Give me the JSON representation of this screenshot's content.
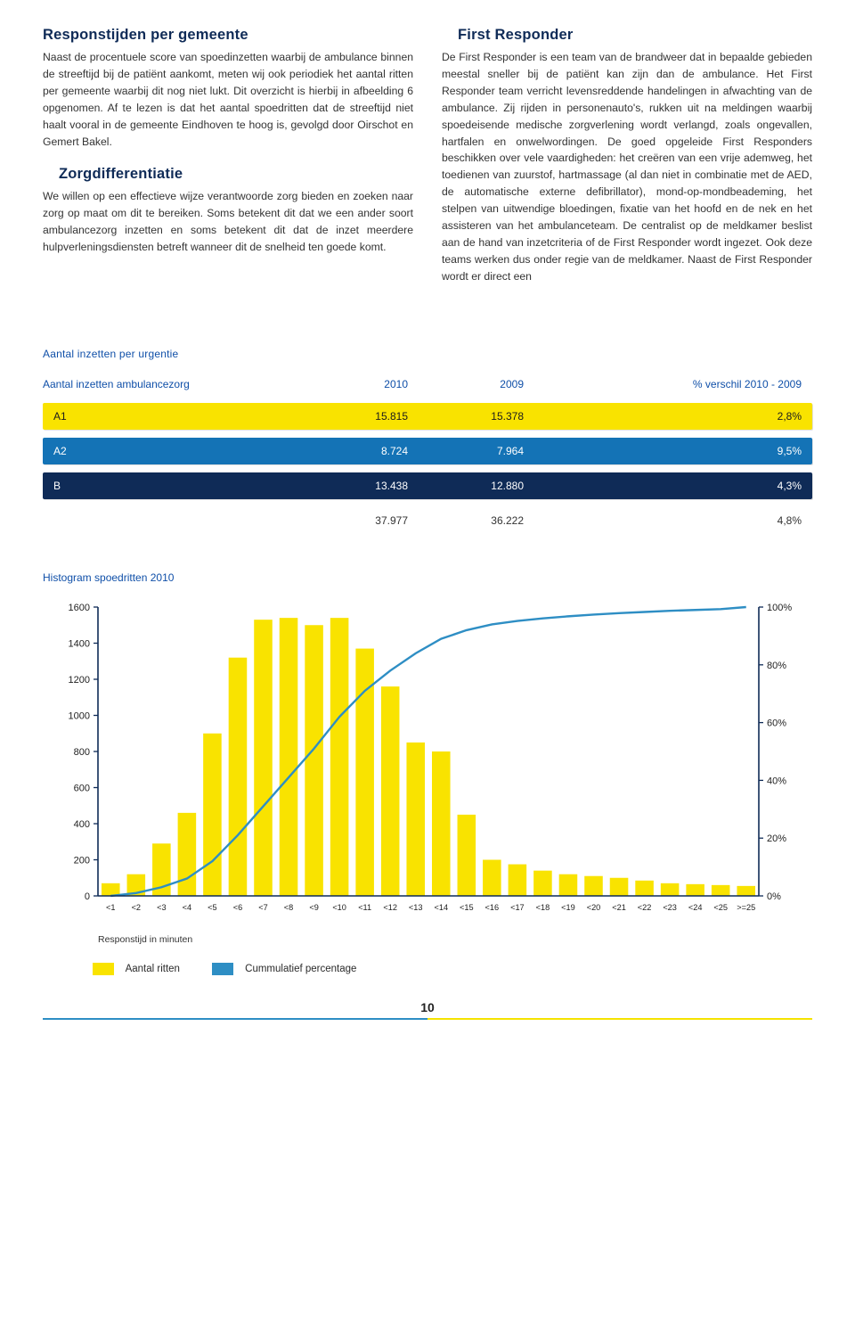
{
  "colors": {
    "heading": "#0f2b57",
    "accent_blue": "#0f4fa8",
    "row_yellow": "#f9e300",
    "row_blue": "#1473b6",
    "row_navy": "#0f2b57",
    "bar_fill": "#f9e300",
    "line_blue": "#2e8ec4",
    "footer_yellow": "#f5e300"
  },
  "left": {
    "h1": "Responstijden per gemeente",
    "p1": "Naast de procentuele score van spoedinzetten waarbij de ambulance binnen de streeftijd bij de patiënt aankomt, meten wij ook periodiek het aantal ritten per gemeente waarbij dit nog niet lukt. Dit overzicht is hierbij in afbeelding 6 opgenomen. Af te lezen is dat het aantal spoedritten dat de streeftijd niet haalt vooral in de gemeente Eindhoven te hoog is, gevolgd door Oirschot en Gemert Bakel.",
    "h2": "Zorgdifferentiatie",
    "p2": "We willen op een effectieve wijze verantwoorde zorg bieden en zoeken naar zorg op maat om dit te bereiken. Soms betekent dit dat we een ander soort ambulancezorg inzetten en soms betekent dit dat de inzet meerdere hulpverleningsdiensten betreft wanneer dit de snelheid ten goede komt."
  },
  "right": {
    "h1": "First Responder",
    "p1": "De First Responder is een team van de brandweer dat in bepaalde gebieden meestal sneller bij de patiënt kan zijn dan de ambulance. Het First Responder team verricht levensreddende handelingen in afwachting van de ambulance. Zij rijden in personenauto's, rukken uit na meldingen waarbij spoedeisende medische zorgverlening wordt verlangd, zoals ongevallen, hartfalen en onwelwordingen. De goed opgeleide First Responders beschikken over vele vaardigheden: het creëren van een vrije ademweg, het toedienen van zuurstof, hartmassage (al dan niet in combinatie met de AED, de automatische externe defibrillator), mond-op-mondbeademing, het stelpen van uitwendige bloedingen, fixatie van het hoofd en de nek en het assisteren van het ambulanceteam. De centralist op de meldkamer beslist aan de hand van inzetcriteria of de First Responder wordt ingezet. Ook deze teams werken dus onder regie van de meldkamer. Naast de First Responder wordt er direct een"
  },
  "table": {
    "title": "Aantal inzetten per urgentie",
    "headers": {
      "label": "Aantal inzetten ambulancezorg",
      "y2010": "2010",
      "y2009": "2009",
      "diff": "% verschil 2010 - 2009"
    },
    "rows": {
      "a1": {
        "label": "A1",
        "y2010": "15.815",
        "y2009": "15.378",
        "diff": "2,8%"
      },
      "a2": {
        "label": "A2",
        "y2010": "8.724",
        "y2009": "7.964",
        "diff": "9,5%"
      },
      "b": {
        "label": "B",
        "y2010": "13.438",
        "y2009": "12.880",
        "diff": "4,3%"
      },
      "total": {
        "label": "",
        "y2010": "37.977",
        "y2009": "36.222",
        "diff": "4,8%"
      }
    }
  },
  "histogram": {
    "title": "Histogram spoedritten 2010",
    "type": "bar+line",
    "x_labels": [
      "<1",
      "<2",
      "<3",
      "<4",
      "<5",
      "<6",
      "<7",
      "<8",
      "<9",
      "<10",
      "<11",
      "<12",
      "<13",
      "<14",
      "<15",
      "<16",
      "<17",
      "<18",
      "<19",
      "<20",
      "<21",
      "<22",
      "<23",
      "<24",
      "<25",
      ">=25"
    ],
    "bar_values": [
      70,
      120,
      290,
      460,
      900,
      1320,
      1530,
      1540,
      1500,
      1540,
      1370,
      1160,
      850,
      800,
      450,
      200,
      175,
      140,
      120,
      110,
      100,
      85,
      70,
      65,
      60,
      55
    ],
    "line_values_pct": [
      0,
      1,
      3,
      6,
      12,
      21,
      31,
      41,
      51,
      62,
      71,
      78,
      84,
      89,
      92,
      94,
      95.2,
      96.1,
      96.8,
      97.4,
      97.9,
      98.3,
      98.7,
      99.0,
      99.3,
      100
    ],
    "y_left": {
      "min": 0,
      "max": 1600,
      "step": 200,
      "ticks": [
        "0",
        "200",
        "400",
        "600",
        "800",
        "1000",
        "1200",
        "1400",
        "1600"
      ]
    },
    "y_right": {
      "min": 0,
      "max": 100,
      "step": 20,
      "ticks": [
        "0%",
        "20%",
        "40%",
        "60%",
        "80%",
        "100%"
      ]
    },
    "bar_color": "#f9e300",
    "line_color": "#2e8ec4",
    "axis_color": "#0f2b57",
    "x_axis_label": "Responstijd in minuten",
    "legend": {
      "bars": "Aantal ritten",
      "line": "Cummulatief percentage"
    }
  },
  "page_number": "10"
}
